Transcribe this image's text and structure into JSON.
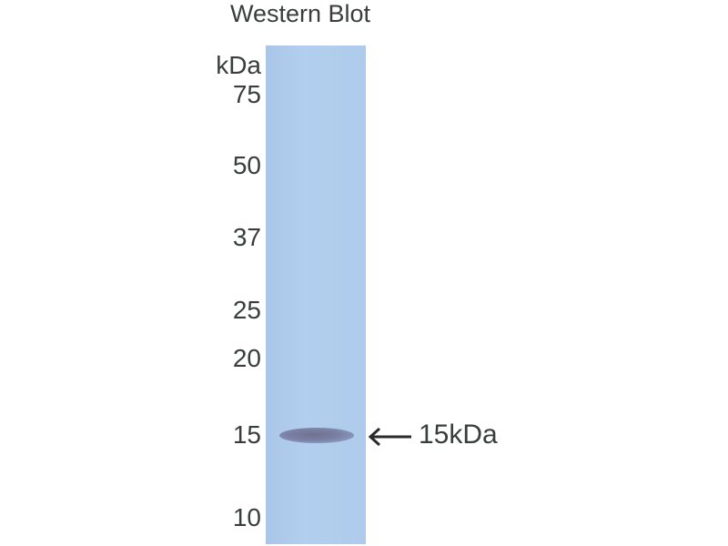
{
  "title": "Western Blot",
  "unit_label": "kDa",
  "markers": [
    "75",
    "50",
    "37",
    "25",
    "20",
    "15",
    "10"
  ],
  "band_label": "15kDa",
  "colors": {
    "lane": "#b0cbec",
    "band": "#747a9c",
    "text": "#3a3d3d"
  }
}
